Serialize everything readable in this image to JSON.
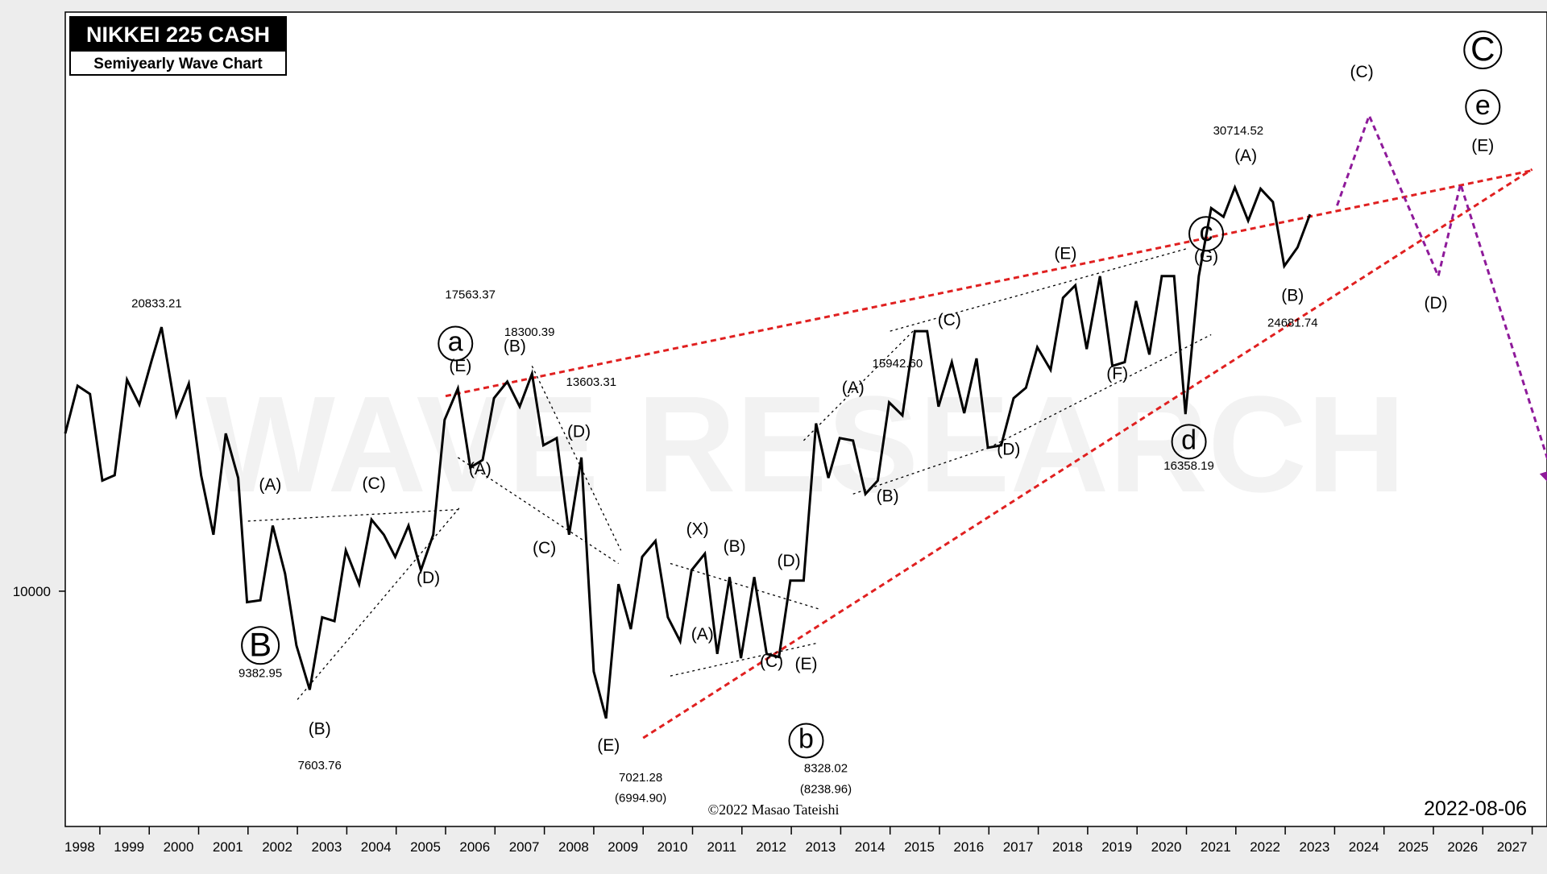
{
  "colors": {
    "background": "#ededed",
    "plot_background": "#ffffff",
    "price_line": "#000000",
    "red_trendline": "#e02020",
    "purple_projection": "#8e1a9a",
    "watermark": "#f2f2f2"
  },
  "header": {
    "title": "NIKKEI 225 CASH",
    "subtitle": "Semiyearly Wave Chart"
  },
  "watermark": "WAVE RESEARCH",
  "copyright": "©2022 Masao Tateishi",
  "date": "2022-08-06",
  "chart_data": {
    "type": "line",
    "title": "NIKKEI 225 CASH",
    "subtitle": "Semiyearly Wave Chart",
    "y_scale": "log",
    "y_tick_labels": [
      {
        "value": 10000,
        "label": "10000"
      }
    ],
    "ylim": [
      5200,
      50000
    ],
    "xlim": [
      1997.3,
      2027.3
    ],
    "x_tick_labels": [
      "1998",
      "1999",
      "2000",
      "2001",
      "2002",
      "2003",
      "2004",
      "2005",
      "2006",
      "2007",
      "2008",
      "2009",
      "2010",
      "2011",
      "2012",
      "2013",
      "2014",
      "2015",
      "2016",
      "2017",
      "2018",
      "2019",
      "2020",
      "2021",
      "2022",
      "2023",
      "2024",
      "2025",
      "2026",
      "2027"
    ],
    "grid": false,
    "series": [
      {
        "points": [
          [
            1997.3,
            15500
          ],
          [
            1997.55,
            17700
          ],
          [
            1997.8,
            17300
          ],
          [
            1998.05,
            13600
          ],
          [
            1998.3,
            13800
          ],
          [
            1998.55,
            18000
          ],
          [
            1998.8,
            16800
          ],
          [
            1999.05,
            19000
          ],
          [
            1999.25,
            20833.21
          ],
          [
            1999.55,
            16300
          ],
          [
            1999.8,
            17800
          ],
          [
            2000.05,
            13800
          ],
          [
            2000.3,
            11700
          ],
          [
            2000.55,
            15500
          ],
          [
            2000.8,
            13700
          ],
          [
            2000.98,
            9700
          ],
          [
            2001.25,
            9750
          ],
          [
            2001.5,
            12000
          ],
          [
            2001.75,
            10500
          ],
          [
            2001.98,
            8600
          ],
          [
            2002.25,
            7603.76
          ],
          [
            2002.5,
            9300
          ],
          [
            2002.75,
            9200
          ],
          [
            2002.98,
            11200
          ],
          [
            2003.25,
            10200
          ],
          [
            2003.5,
            12200
          ],
          [
            2003.75,
            11700
          ],
          [
            2003.98,
            11000
          ],
          [
            2004.25,
            12000
          ],
          [
            2004.5,
            10600
          ],
          [
            2004.75,
            11700
          ],
          [
            2004.98,
            16100
          ],
          [
            2005.25,
            17563.37
          ],
          [
            2005.5,
            14100
          ],
          [
            2005.75,
            14400
          ],
          [
            2005.98,
            17100
          ],
          [
            2006.25,
            17900
          ],
          [
            2006.5,
            16700
          ],
          [
            2006.75,
            18300.39
          ],
          [
            2006.98,
            15000
          ],
          [
            2007.25,
            15300
          ],
          [
            2007.5,
            11700
          ],
          [
            2007.75,
            14500
          ],
          [
            2008.0,
            8000
          ],
          [
            2008.25,
            7021.28
          ],
          [
            2008.5,
            10200
          ],
          [
            2008.75,
            9000
          ],
          [
            2008.98,
            11000
          ],
          [
            2009.25,
            11500
          ],
          [
            2009.5,
            9300
          ],
          [
            2009.75,
            8700
          ],
          [
            2009.98,
            10600
          ],
          [
            2010.25,
            11100
          ],
          [
            2010.5,
            8400
          ],
          [
            2010.75,
            10400
          ],
          [
            2010.98,
            8300
          ],
          [
            2011.25,
            10400
          ],
          [
            2011.5,
            8400
          ],
          [
            2011.75,
            8328.02
          ],
          [
            2011.98,
            10300
          ],
          [
            2012.25,
            10300
          ],
          [
            2012.5,
            15942.6
          ],
          [
            2012.75,
            13700
          ],
          [
            2012.98,
            15300
          ],
          [
            2013.25,
            15200
          ],
          [
            2013.5,
            13100
          ],
          [
            2013.75,
            13600
          ],
          [
            2013.98,
            16900
          ],
          [
            2014.25,
            16300
          ],
          [
            2014.5,
            20600
          ],
          [
            2014.75,
            20600
          ],
          [
            2014.98,
            16700
          ],
          [
            2015.25,
            18900
          ],
          [
            2015.5,
            16400
          ],
          [
            2015.75,
            19100
          ],
          [
            2015.98,
            14900
          ],
          [
            2016.25,
            15000
          ],
          [
            2016.5,
            17100
          ],
          [
            2016.75,
            17600
          ],
          [
            2016.98,
            19700
          ],
          [
            2017.25,
            18500
          ],
          [
            2017.5,
            22600
          ],
          [
            2017.75,
            23400
          ],
          [
            2017.98,
            19600
          ],
          [
            2018.25,
            24000
          ],
          [
            2018.5,
            18700
          ],
          [
            2018.75,
            18900
          ],
          [
            2018.98,
            22400
          ],
          [
            2019.25,
            19300
          ],
          [
            2019.5,
            24000
          ],
          [
            2019.75,
            24000
          ],
          [
            2019.98,
            16358.19
          ],
          [
            2020.25,
            24000
          ],
          [
            2020.5,
            29000
          ],
          [
            2020.75,
            28300
          ],
          [
            2020.98,
            30714.52
          ],
          [
            2021.25,
            28000
          ],
          [
            2021.5,
            30600
          ],
          [
            2021.75,
            29500
          ],
          [
            2021.98,
            24681.74
          ],
          [
            2022.25,
            26000
          ],
          [
            2022.5,
            28500
          ]
        ]
      }
    ],
    "trendlines": [
      {
        "color": "#e02020",
        "style": "dashed",
        "from": [
          2005.0,
          17200
        ],
        "to": [
          2027.0,
          32200
        ]
      },
      {
        "color": "#e02020",
        "style": "dashed",
        "from": [
          2009.0,
          6650
        ],
        "to": [
          2027.0,
          32300
        ]
      },
      {
        "color": "#000000",
        "style": "dotted",
        "from": [
          2001.0,
          12150
        ],
        "to": [
          2005.3,
          12550
        ]
      },
      {
        "color": "#000000",
        "style": "dotted",
        "from": [
          2002.0,
          7400
        ],
        "to": [
          2005.3,
          12650
        ]
      },
      {
        "color": "#000000",
        "style": "dotted",
        "from": [
          2005.25,
          14500
        ],
        "to": [
          2008.5,
          10800
        ]
      },
      {
        "color": "#000000",
        "style": "dotted",
        "from": [
          2006.75,
          18700
        ],
        "to": [
          2008.55,
          11200
        ]
      },
      {
        "color": "#000000",
        "style": "dotted",
        "from": [
          2009.55,
          10800
        ],
        "to": [
          2012.6,
          9500
        ]
      },
      {
        "color": "#000000",
        "style": "dotted",
        "from": [
          2009.55,
          7900
        ],
        "to": [
          2012.5,
          8650
        ]
      },
      {
        "color": "#000000",
        "style": "dotted",
        "from": [
          2012.25,
          15200
        ],
        "to": [
          2014.5,
          20700
        ]
      },
      {
        "color": "#000000",
        "style": "dotted",
        "from": [
          2014.0,
          20600
        ],
        "to": [
          2020.0,
          25900
        ]
      },
      {
        "color": "#000000",
        "style": "dotted",
        "from": [
          2013.25,
          13100
        ],
        "to": [
          2016.0,
          14900
        ]
      },
      {
        "color": "#000000",
        "style": "dotted",
        "from": [
          2016.0,
          14900
        ],
        "to": [
          2020.5,
          20400
        ]
      }
    ],
    "projection": {
      "color": "#8e1a9a",
      "points": [
        [
          2023.05,
          29200
        ],
        [
          2023.7,
          37500
        ],
        [
          2025.1,
          24000
        ],
        [
          2025.55,
          31000
        ],
        [
          2027.5,
          13300
        ]
      ]
    },
    "wave_labels": [
      {
        "text": "(A)",
        "x": 2001.45,
        "y": 13400
      },
      {
        "text": "(B)",
        "x": 2002.45,
        "y": 6800
      },
      {
        "text": "(C)",
        "x": 2003.55,
        "y": 13450
      },
      {
        "text": "(D)",
        "x": 2004.65,
        "y": 10350
      },
      {
        "text": "(E)",
        "x": 2005.3,
        "y": 18650
      },
      {
        "text": "(A)",
        "x": 2005.7,
        "y": 14000
      },
      {
        "text": "(B)",
        "x": 2006.4,
        "y": 19700
      },
      {
        "text": "(C)",
        "x": 2007.0,
        "y": 11250
      },
      {
        "text": "(D)",
        "x": 2007.7,
        "y": 15550
      },
      {
        "text": "(E)",
        "x": 2008.3,
        "y": 6500
      },
      {
        "text": "(X)",
        "x": 2010.1,
        "y": 11850
      },
      {
        "text": "(A)",
        "x": 2010.2,
        "y": 8850
      },
      {
        "text": "(B)",
        "x": 2010.85,
        "y": 11300
      },
      {
        "text": "(C)",
        "x": 2011.6,
        "y": 8200
      },
      {
        "text": "(D)",
        "x": 2011.95,
        "y": 10850
      },
      {
        "text": "(E)",
        "x": 2012.3,
        "y": 8150
      },
      {
        "text": "(A)",
        "x": 2013.25,
        "y": 17550
      },
      {
        "text": "(B)",
        "x": 2013.95,
        "y": 13000
      },
      {
        "text": "(C)",
        "x": 2015.2,
        "y": 21200
      },
      {
        "text": "(D)",
        "x": 2016.4,
        "y": 14800
      },
      {
        "text": "(E)",
        "x": 2017.55,
        "y": 25500
      },
      {
        "text": "(F)",
        "x": 2018.6,
        "y": 18250
      },
      {
        "text": "(G)",
        "x": 2020.4,
        "y": 25300
      },
      {
        "text": "(A)",
        "x": 2021.2,
        "y": 33450
      },
      {
        "text": "(B)",
        "x": 2022.15,
        "y": 22700
      },
      {
        "text": "(C)",
        "x": 2023.55,
        "y": 42250
      },
      {
        "text": "(D)",
        "x": 2025.05,
        "y": 22200
      },
      {
        "text": "(E)",
        "x": 2026.0,
        "y": 34400
      }
    ],
    "circled_labels": [
      {
        "text": "B",
        "x": 2001.25,
        "y": 8600,
        "size": "large"
      },
      {
        "text": "a",
        "x": 2005.2,
        "y": 19900,
        "size": "small"
      },
      {
        "text": "b",
        "x": 2012.3,
        "y": 6600,
        "size": "small"
      },
      {
        "text": "c",
        "x": 2020.4,
        "y": 27000,
        "size": "small"
      },
      {
        "text": "d",
        "x": 2020.05,
        "y": 15150,
        "size": "small"
      },
      {
        "text": "C",
        "x": 2026.0,
        "y": 45000,
        "size": "large"
      },
      {
        "text": "e",
        "x": 2026.0,
        "y": 38400,
        "size": "small"
      }
    ],
    "price_annotations": [
      {
        "text": "20833.21",
        "x": 1999.15,
        "y": 22200
      },
      {
        "text": "9382.95",
        "x": 2001.25,
        "y": 7950
      },
      {
        "text": "7603.76",
        "x": 2002.45,
        "y": 6150
      },
      {
        "text": "17563.37",
        "x": 2005.5,
        "y": 22750
      },
      {
        "text": "18300.39",
        "x": 2006.7,
        "y": 20500
      },
      {
        "text": "13603.31",
        "x": 2007.95,
        "y": 17850
      },
      {
        "text": "7021.28",
        "x": 2008.95,
        "y": 5950
      },
      {
        "text": "(6994.90)",
        "x": 2008.95,
        "y": 5620
      },
      {
        "text": "8328.02",
        "x": 2012.7,
        "y": 6100
      },
      {
        "text": "(8238.96)",
        "x": 2012.7,
        "y": 5760
      },
      {
        "text": "15942.60",
        "x": 2014.15,
        "y": 18800
      },
      {
        "text": "30714.52",
        "x": 2021.05,
        "y": 35900
      },
      {
        "text": "24681.74",
        "x": 2022.15,
        "y": 21050
      },
      {
        "text": "16358.19",
        "x": 2020.05,
        "y": 14150
      }
    ]
  }
}
